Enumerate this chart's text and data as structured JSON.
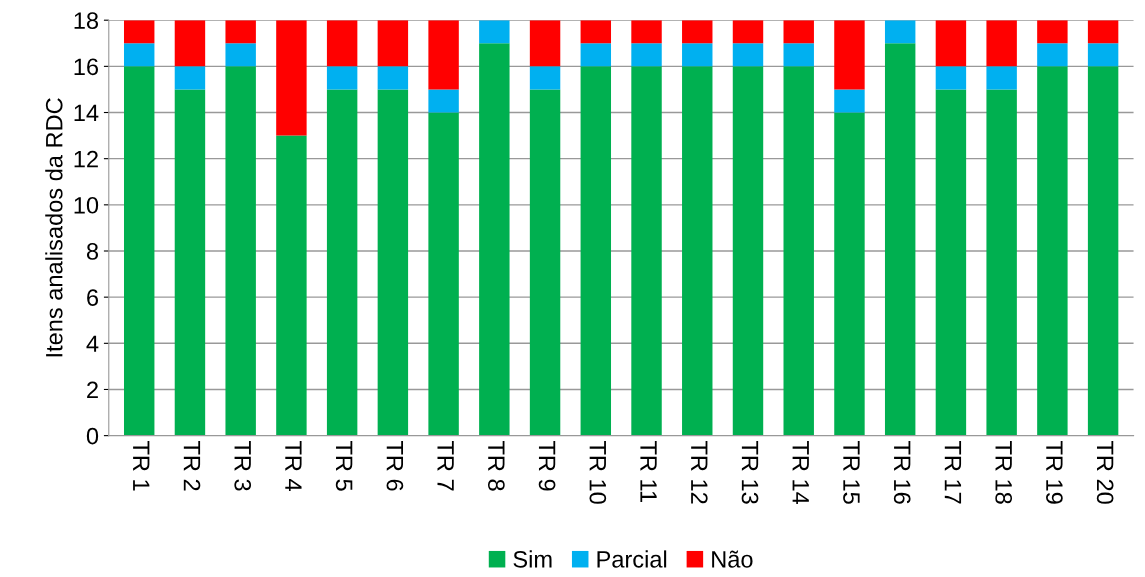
{
  "chart_data": {
    "type": "bar",
    "stacked": true,
    "ylabel": "Itens analisados da RDC",
    "categories": [
      "TR 1",
      "TR 2",
      "TR 3",
      "TR 4",
      "TR 5",
      "TR 6",
      "TR 7",
      "TR 8",
      "TR 9",
      "TR 10",
      "TR 11",
      "TR 12",
      "TR 13",
      "TR 14",
      "TR 15",
      "TR 16",
      "TR 17",
      "TR 18",
      "TR 19",
      "TR 20"
    ],
    "series": [
      {
        "name": "Sim",
        "color": "#00b050",
        "values": [
          16,
          15,
          16,
          13,
          15,
          15,
          14,
          17,
          15,
          16,
          16,
          16,
          16,
          16,
          14,
          17,
          15,
          15,
          16,
          16
        ]
      },
      {
        "name": "Parcial",
        "color": "#00b0f0",
        "values": [
          1,
          1,
          1,
          0,
          1,
          1,
          1,
          1,
          1,
          1,
          1,
          1,
          1,
          1,
          1,
          1,
          1,
          1,
          1,
          1
        ]
      },
      {
        "name": "Não",
        "color": "#ff0000",
        "values": [
          1,
          2,
          1,
          5,
          2,
          2,
          3,
          0,
          2,
          1,
          1,
          1,
          1,
          1,
          3,
          0,
          2,
          2,
          1,
          1
        ]
      }
    ],
    "ylim": [
      0,
      18
    ],
    "yticks": [
      0,
      2,
      4,
      6,
      8,
      10,
      12,
      14,
      16,
      18
    ],
    "grid": "y",
    "legend": "bottom"
  }
}
